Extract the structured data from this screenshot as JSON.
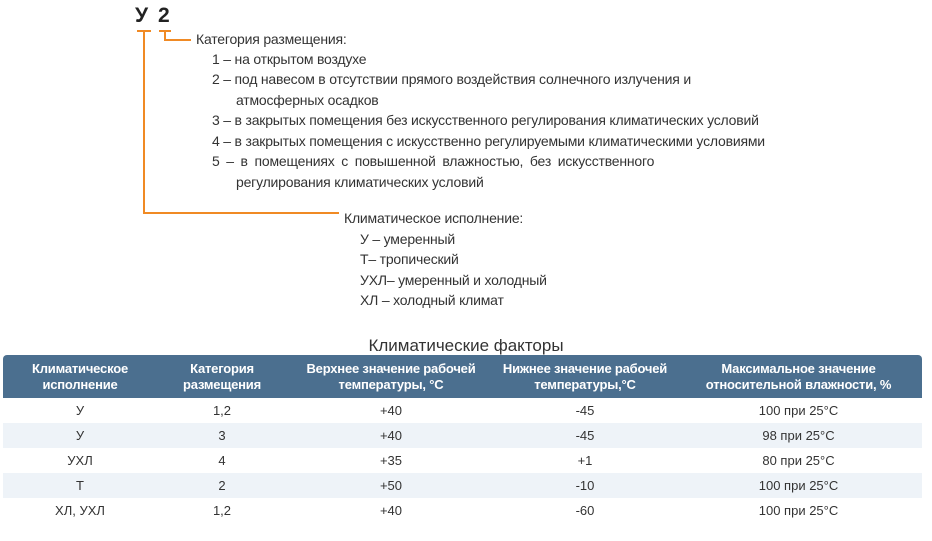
{
  "code": {
    "letter": "У",
    "digit": "2"
  },
  "category": {
    "title": "Категория размещения:",
    "items": [
      "1 – на открытом воздухе",
      "2 – под навесом в отсутствии прямого воздействия солнечного излучения и",
      "атмосферных осадков",
      "3 – в закрытых помещения без искусственного регулирования климатических условий",
      "4 – в закрытых помещения с искусственно регулируемыми климатическими условиями",
      "5 – в помещениях с повышенной влажностью, без искусственного",
      "регулирования климатических условий"
    ]
  },
  "climate": {
    "title": "Климатическое исполнение:",
    "items": [
      "У – умеренный",
      "Т– тропический",
      "УХЛ– умеренный и холодный",
      "ХЛ – холодный климат"
    ]
  },
  "table": {
    "caption": "Климатические факторы",
    "header_color": "#4b6f8f",
    "headers": [
      [
        "Климатическое",
        "исполнение"
      ],
      [
        "Категория",
        "размещения"
      ],
      [
        "Верхнее значение рабочей",
        "температуры, °С"
      ],
      [
        "Нижнее значение рабочей",
        "температуры,°С"
      ],
      [
        "Максимальное значение",
        "относительной влажности, %"
      ]
    ],
    "rows": [
      [
        "У",
        "1,2",
        "+40",
        "-45",
        "100 при 25°С"
      ],
      [
        "У",
        "3",
        "+40",
        "-45",
        "98 при 25°С"
      ],
      [
        "УХЛ",
        "4",
        "+35",
        "+1",
        "80 при 25°С"
      ],
      [
        "Т",
        "2",
        "+50",
        "-10",
        "100 при 25°С"
      ],
      [
        "ХЛ, УХЛ",
        "1,2",
        "+40",
        "-60",
        "100 при 25°С"
      ]
    ]
  },
  "accent_color": "#f08a24"
}
